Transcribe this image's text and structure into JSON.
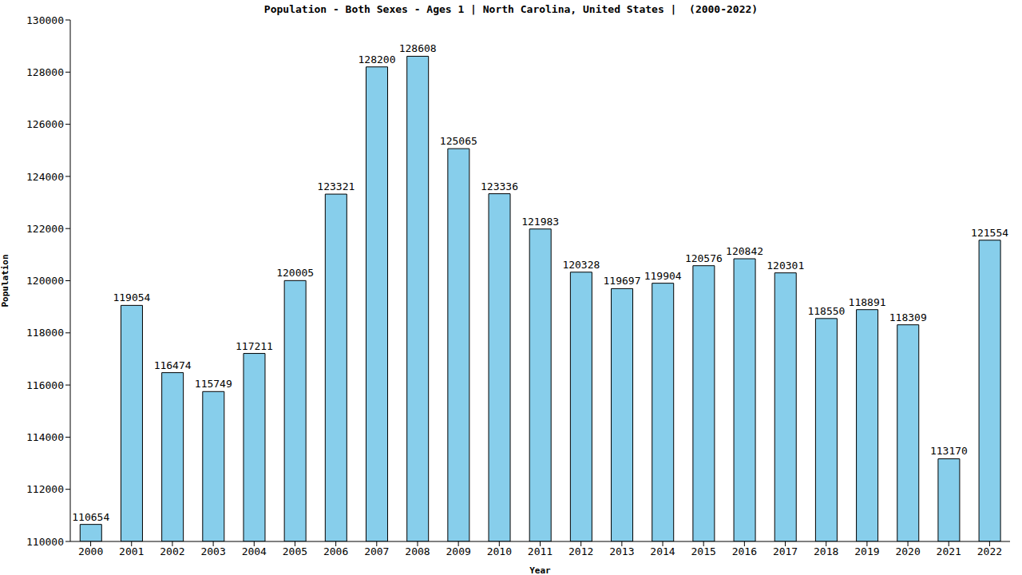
{
  "chart_data": {
    "type": "bar",
    "title": "Population - Both Sexes - Ages 1 | North Carolina, United States |  (2000-2022)",
    "x_label": "Year",
    "y_label": "Population",
    "categories": [
      "2000",
      "2001",
      "2002",
      "2003",
      "2004",
      "2005",
      "2006",
      "2007",
      "2008",
      "2009",
      "2010",
      "2011",
      "2012",
      "2013",
      "2014",
      "2015",
      "2016",
      "2017",
      "2018",
      "2019",
      "2020",
      "2021",
      "2022"
    ],
    "values": [
      110654,
      119054,
      116474,
      115749,
      117211,
      120005,
      123321,
      128200,
      128608,
      125065,
      123336,
      121983,
      120328,
      119697,
      119904,
      120576,
      120842,
      120301,
      118550,
      118891,
      118309,
      113170,
      121554
    ],
    "color": "#87ceeb",
    "ylim": [
      110000,
      130000
    ],
    "yticks": [
      110000,
      112000,
      114000,
      116000,
      118000,
      120000,
      122000,
      124000,
      126000,
      128000,
      130000
    ],
    "grid": false,
    "data_labels": true
  }
}
